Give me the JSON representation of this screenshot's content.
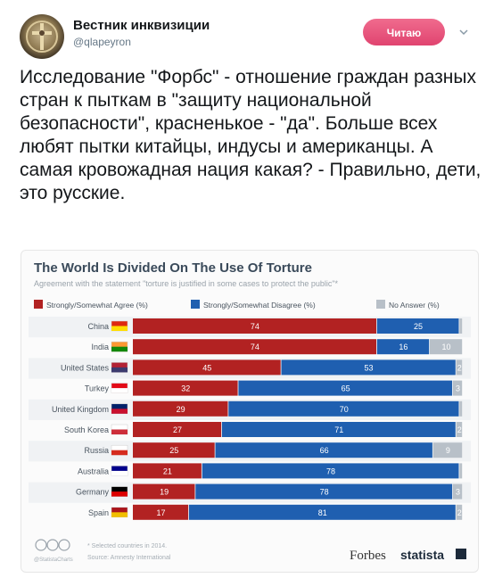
{
  "header": {
    "name": "Вестник инквизиции",
    "handle": "@qlapeyron",
    "follow_label": "Читаю"
  },
  "tweet": {
    "text": "Исследование \"Форбс\" - отношение граждан разных стран к пыткам в \"защиту национальной безопасности\", красненькое - \"да\". Больше всех любят пытки китайцы, индусы и американцы. А самая кровожадная нация какая? - Правильно, дети, это русские."
  },
  "icons": {
    "avatar": "inquisition-emblem",
    "menu": "chevron-down-icon"
  },
  "colors": {
    "agree": "#b22222",
    "disagree": "#1f5fb0",
    "no_answer": "#b8c0c8",
    "follow_button": "#e04470"
  },
  "chart_data": {
    "type": "bar",
    "stacked": true,
    "orientation": "horizontal",
    "title": "The World Is Divided On The Use Of Torture",
    "subtitle": "Agreement with the statement \"torture is justified in some cases to protect the public\"*",
    "categories": [
      "China",
      "India",
      "United States",
      "Turkey",
      "United Kingdom",
      "South Korea",
      "Russia",
      "Australia",
      "Germany",
      "Spain"
    ],
    "series": [
      {
        "name": "Strongly/Somewhat Agree (%)",
        "values": [
          74,
          74,
          45,
          32,
          29,
          27,
          25,
          21,
          19,
          17
        ]
      },
      {
        "name": "Strongly/Somewhat Disagree (%)",
        "values": [
          25,
          16,
          53,
          65,
          70,
          71,
          66,
          78,
          78,
          81
        ]
      },
      {
        "name": "No Answer (%)",
        "values": [
          1,
          10,
          2,
          3,
          1,
          2,
          9,
          1,
          3,
          2
        ]
      }
    ],
    "shown_labels": {
      "no_answer": [
        "",
        "10",
        "2",
        "3",
        "",
        "2",
        "9",
        "",
        "3",
        "2"
      ]
    },
    "legend_position": "top",
    "xlim": [
      0,
      100
    ],
    "footnote": "* Selected countries in 2014.",
    "source": "Source: Amnesty International",
    "credit": "@StatistaCharts",
    "brand_forbes": "Forbes",
    "brand_statista": "statista"
  }
}
